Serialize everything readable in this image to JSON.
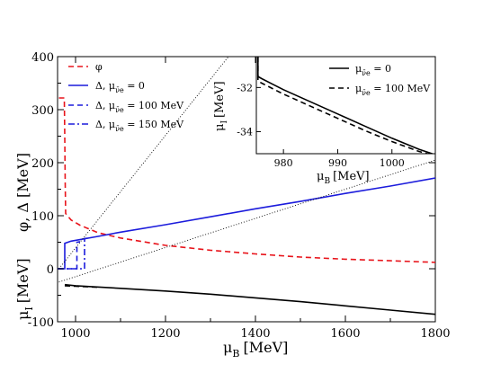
{
  "chart_data": {
    "type": "line",
    "xlim": [
      960,
      1800
    ],
    "ylim": [
      -100,
      400
    ],
    "x_ticks": [
      "1000",
      "1200",
      "1400",
      "1600",
      "1800"
    ],
    "y_ticks": [
      "-100",
      "0",
      "100",
      "200",
      "300",
      "400"
    ],
    "xlabel": {
      "symbol": "μ",
      "sub": "B",
      "unit": "[MeV]"
    },
    "ylabel_top": {
      "text": "φ, Δ  [MeV]"
    },
    "ylabel_bottom": {
      "symbol": "μ",
      "sub": "I",
      "unit": "[MeV]"
    },
    "legend": {
      "placement": "top-left",
      "entries": [
        {
          "label": "φ",
          "style": "dashed",
          "color": "#e8141b"
        },
        {
          "label": "Δ,  μ",
          "sub": "ν̄e",
          "suffix": " = 0",
          "style": "solid",
          "color": "#1c1cdc"
        },
        {
          "label": "Δ,  μ",
          "sub": "ν̄e",
          "suffix": " = 100 MeV",
          "style": "dashed",
          "color": "#1c1cdc"
        },
        {
          "label": "Δ,  μ",
          "sub": "ν̄e",
          "suffix": " = 150 MeV",
          "style": "dashdot",
          "color": "#1c1cdc"
        }
      ]
    },
    "series": [
      {
        "key": "phi",
        "color": "#e8141b",
        "style": "dashed",
        "points": [
          [
            963,
            322
          ],
          [
            975,
            322
          ],
          [
            975,
            320
          ],
          [
            976,
            250
          ],
          [
            977,
            160
          ],
          [
            978,
            104
          ],
          [
            990,
            92
          ],
          [
            1010,
            82
          ],
          [
            1050,
            68
          ],
          [
            1100,
            58
          ],
          [
            1200,
            44
          ],
          [
            1300,
            35
          ],
          [
            1400,
            28
          ],
          [
            1500,
            22
          ],
          [
            1600,
            18
          ],
          [
            1700,
            15
          ],
          [
            1800,
            12
          ]
        ]
      },
      {
        "key": "delta_0",
        "color": "#1c1cdc",
        "style": "solid",
        "points": [
          [
            960,
            0
          ],
          [
            976,
            0
          ],
          [
            976,
            48
          ],
          [
            990,
            52
          ],
          [
            1050,
            61
          ],
          [
            1100,
            69
          ],
          [
            1200,
            83
          ],
          [
            1300,
            98
          ],
          [
            1400,
            113
          ],
          [
            1500,
            127
          ],
          [
            1600,
            142
          ],
          [
            1700,
            156
          ],
          [
            1800,
            171
          ]
        ]
      },
      {
        "key": "delta_100",
        "color": "#1c1cdc",
        "style": "dashed",
        "points": [
          [
            960,
            0
          ],
          [
            1003,
            0
          ],
          [
            1003,
            50
          ],
          [
            1010,
            51
          ]
        ]
      },
      {
        "key": "delta_150",
        "color": "#1c1cdc",
        "style": "dashdot",
        "points": [
          [
            960,
            0
          ],
          [
            1020,
            0
          ],
          [
            1020,
            57
          ],
          [
            1030,
            58
          ]
        ]
      },
      {
        "key": "mu_I",
        "color": "#000000",
        "style": "solid",
        "points": [
          [
            976,
            -30
          ],
          [
            1000,
            -32
          ],
          [
            1100,
            -37
          ],
          [
            1200,
            -42
          ],
          [
            1300,
            -48
          ],
          [
            1400,
            -55
          ],
          [
            1500,
            -62
          ],
          [
            1600,
            -70
          ],
          [
            1700,
            -78
          ],
          [
            1800,
            -86
          ]
        ]
      },
      {
        "key": "mu_I_100",
        "color": "#000000",
        "style": "dashed",
        "points": [
          [
            976,
            -32
          ],
          [
            1000,
            -33
          ],
          [
            1050,
            -35
          ]
        ]
      },
      {
        "key": "guide_1",
        "color": "#000000",
        "style": "dotted",
        "points": [
          [
            963,
            0
          ],
          [
            1340,
            400
          ]
        ]
      },
      {
        "key": "guide_2",
        "color": "#000000",
        "style": "dotted",
        "points": [
          [
            963,
            -25
          ],
          [
            1800,
            205
          ]
        ]
      }
    ],
    "inset": {
      "xlim": [
        975,
        1008
      ],
      "ylim": [
        -35,
        -30.6
      ],
      "x_ticks": [
        "980",
        "990",
        "1000"
      ],
      "x_tick_values": [
        980,
        990,
        1000
      ],
      "y_ticks": [
        "-32",
        "-34"
      ],
      "y_tick_values": [
        -32,
        -34
      ],
      "xlabel": {
        "symbol": "μ",
        "sub": "B",
        "unit": "[MeV]"
      },
      "ylabel": {
        "symbol": "μ",
        "sub": "I",
        "unit": "[MeV]"
      },
      "legend": {
        "placement": "top-right",
        "entries": [
          {
            "label": "μ",
            "sub": "ν̄e",
            "suffix": " = 0",
            "style": "solid",
            "color": "#000000"
          },
          {
            "label": "μ",
            "sub": "ν̄e",
            "suffix": " = 100 MeV",
            "style": "dashed",
            "color": "#000000"
          }
        ]
      },
      "series": [
        {
          "key": "inset_0",
          "color": "#000000",
          "style": "solid",
          "points": [
            [
              975.3,
              -30.6
            ],
            [
              975.3,
              -31.5
            ],
            [
              976,
              -31.6
            ],
            [
              978,
              -31.85
            ],
            [
              980,
              -32.1
            ],
            [
              985,
              -32.65
            ],
            [
              990,
              -33.2
            ],
            [
              995,
              -33.75
            ],
            [
              1000,
              -34.3
            ],
            [
              1005,
              -34.8
            ],
            [
              1008,
              -35.05
            ]
          ]
        },
        {
          "key": "inset_100",
          "color": "#000000",
          "style": "dashed",
          "points": [
            [
              975.3,
              -30.6
            ],
            [
              975.3,
              -31.7
            ],
            [
              976,
              -31.8
            ],
            [
              978,
              -32.05
            ],
            [
              980,
              -32.3
            ],
            [
              985,
              -32.85
            ],
            [
              990,
              -33.4
            ],
            [
              995,
              -33.95
            ],
            [
              1000,
              -34.45
            ],
            [
              1005,
              -34.9
            ],
            [
              1008,
              -35.1
            ]
          ]
        }
      ]
    }
  }
}
